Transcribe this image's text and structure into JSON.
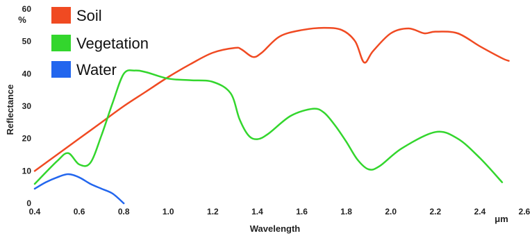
{
  "chart_data": {
    "type": "line",
    "title": "",
    "xlabel": "Wavelength",
    "ylabel": "Reflectance",
    "x_unit": "μm",
    "y_unit": "%",
    "xlim": [
      0.4,
      2.6
    ],
    "ylim": [
      0,
      60
    ],
    "x_ticks": [
      "0.4",
      "0.6",
      "0.8",
      "1.0",
      "1.2",
      "1.4",
      "1.6",
      "1.8",
      "2.0",
      "2.2",
      "2.4",
      "2.6"
    ],
    "y_ticks": [
      "0",
      "10",
      "20",
      "30",
      "40",
      "50",
      "60"
    ],
    "grid": false,
    "legend_position": "top-left",
    "series": [
      {
        "name": "Soil",
        "color": "#f04a22",
        "x": [
          0.4,
          0.5,
          0.6,
          0.7,
          0.8,
          0.9,
          1.0,
          1.1,
          1.2,
          1.3,
          1.33,
          1.38,
          1.42,
          1.5,
          1.6,
          1.7,
          1.78,
          1.84,
          1.88,
          1.92,
          2.0,
          2.08,
          2.15,
          2.2,
          2.3,
          2.4,
          2.5,
          2.53
        ],
        "y": [
          10,
          15,
          20,
          25,
          30,
          34.5,
          39,
          43,
          46.5,
          48,
          47.5,
          45.2,
          46.5,
          51.5,
          53.5,
          54.2,
          53.5,
          50,
          43.5,
          47,
          52.5,
          54,
          52.5,
          53,
          52.5,
          48.5,
          44.8,
          44
        ]
      },
      {
        "name": "Vegetation",
        "color": "#33d62d",
        "x": [
          0.4,
          0.5,
          0.55,
          0.6,
          0.65,
          0.7,
          0.75,
          0.8,
          0.85,
          0.9,
          1.0,
          1.1,
          1.2,
          1.28,
          1.32,
          1.36,
          1.4,
          1.45,
          1.55,
          1.65,
          1.7,
          1.75,
          1.8,
          1.85,
          1.9,
          1.95,
          2.05,
          2.2,
          2.3,
          2.4,
          2.5
        ],
        "y": [
          6,
          13,
          15.5,
          12,
          12.5,
          21,
          31,
          40,
          41,
          40.5,
          38.5,
          38,
          37.5,
          34,
          26,
          21,
          19.8,
          21.5,
          27,
          29.2,
          28,
          24,
          19,
          13.5,
          10.5,
          11.5,
          17,
          22,
          20,
          14,
          6.5
        ]
      },
      {
        "name": "Water",
        "color": "#2266ee",
        "x": [
          0.4,
          0.45,
          0.5,
          0.55,
          0.6,
          0.65,
          0.7,
          0.75,
          0.8
        ],
        "y": [
          4.5,
          6.5,
          8,
          9,
          8,
          6,
          4.5,
          3,
          0
        ]
      }
    ]
  }
}
